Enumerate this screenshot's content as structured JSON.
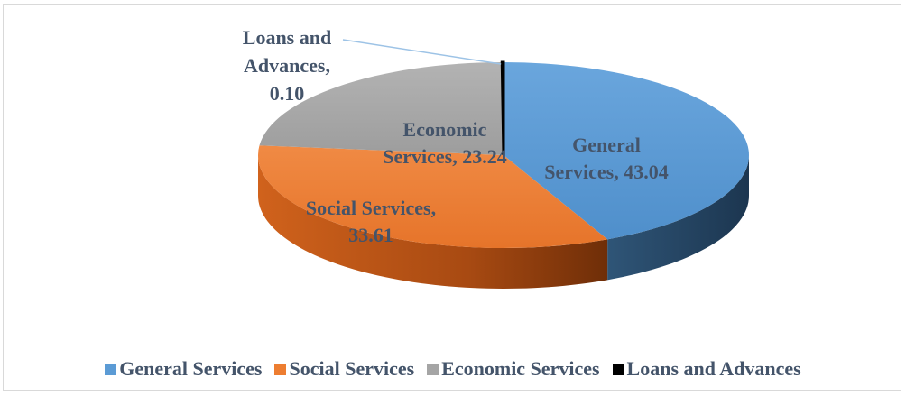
{
  "chart_data": {
    "type": "pie",
    "style": "3d",
    "title": "",
    "series": [
      {
        "categories": [
          "General Services",
          "Social Services",
          "Economic Services",
          "Loans and Advances"
        ],
        "values": [
          43.04,
          33.61,
          23.24,
          0.1
        ]
      }
    ],
    "data_labels": [
      [
        "General",
        "Services, 43.04"
      ],
      [
        "Social Services,",
        "33.61"
      ],
      [
        "Economic",
        "Services, 23.24"
      ],
      [
        "Loans and",
        "Advances,",
        "0.10"
      ]
    ],
    "colors": [
      "#5b9bd5",
      "#ed7d31",
      "#a5a5a5",
      "#000000"
    ],
    "legend": {
      "position": "bottom",
      "entries": [
        "General Services",
        "Social Services",
        "Economic Services",
        "Loans and Advances"
      ]
    }
  }
}
